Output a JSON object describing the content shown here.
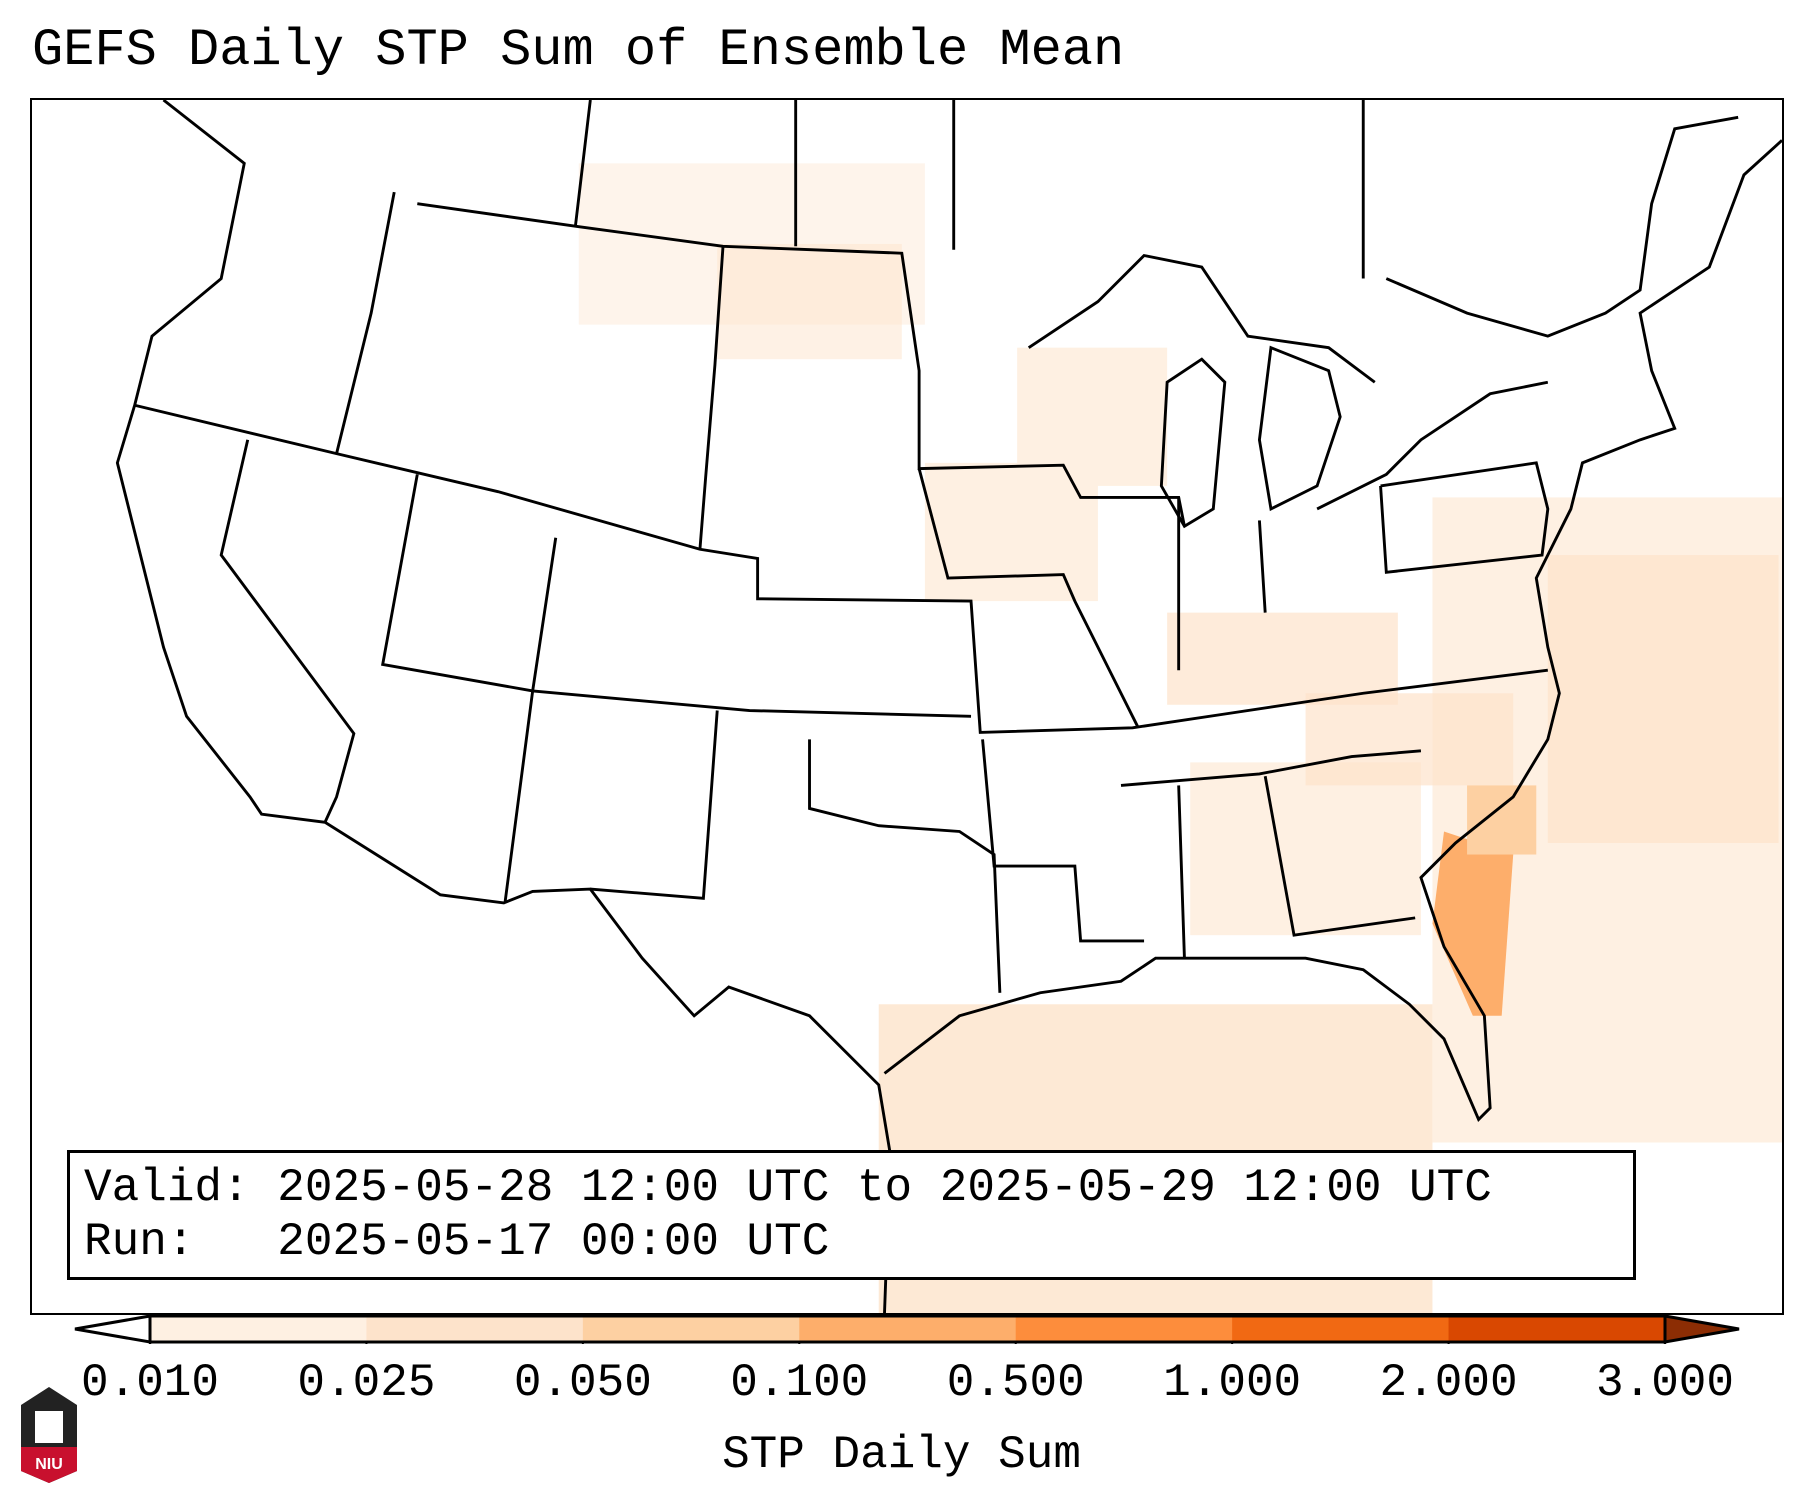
{
  "title": "GEFS Daily STP Sum of Ensemble Mean",
  "info": {
    "valid_label": "Valid:",
    "valid_value": "2025-05-28 12:00 UTC to 2025-05-29 12:00 UTC",
    "run_label": "Run:",
    "run_value": "2025-05-17 00:00 UTC"
  },
  "colorbar": {
    "label": "STP Daily Sum",
    "ticks": [
      "0.010",
      "0.025",
      "0.050",
      "0.100",
      "0.500",
      "1.000",
      "2.000",
      "3.000"
    ],
    "colors": [
      "#fef0e2",
      "#fde3cb",
      "#fdd0a2",
      "#fdae6b",
      "#fd8d3c",
      "#f16913",
      "#d94801"
    ],
    "under_color": "#ffffff",
    "over_color": "#8c2d04"
  },
  "logo": {
    "text": "NIU"
  }
}
